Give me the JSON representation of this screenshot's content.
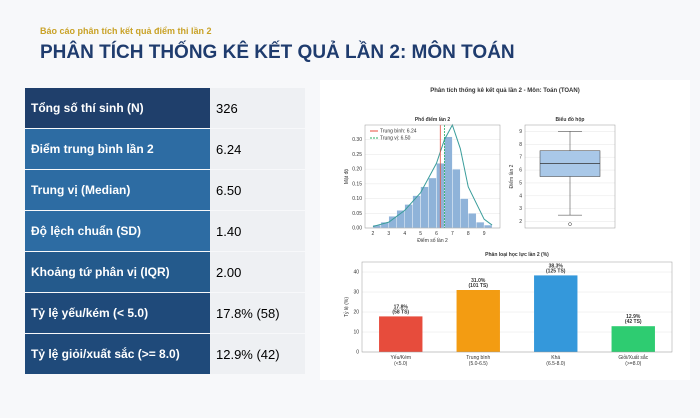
{
  "header": {
    "subtitle": "Báo cáo phân tích kết quả điểm thi lần 2",
    "title": "PHÂN TÍCH THỐNG KÊ KẾT QUẢ LẦN 2: MÔN TOÁN"
  },
  "table": {
    "rows": [
      [
        "Tổng số thí sinh (N)",
        "326"
      ],
      [
        "Điểm trung bình lần 2",
        "6.24"
      ],
      [
        "Trung vị (Median)",
        "6.50"
      ],
      [
        "Độ lệch chuẩn (SD)",
        "1.40"
      ],
      [
        "Khoảng tứ phân vị (IQR)",
        "2.00"
      ],
      [
        "Tỷ lệ yếu/kém (< 5.0)",
        "17.8% (58)"
      ],
      [
        "Tỷ lệ giỏi/xuất sắc (>= 8.0)",
        "12.9% (42)"
      ]
    ]
  },
  "figure": {
    "title": "Phân tích thống kê kết quả lần 2 - Môn: Toán (TOAN)",
    "histogram": {
      "type": "histogram",
      "title": "Phổ điểm lần 2",
      "x_label": "Điểm số lần 2",
      "y_label": "Mật độ",
      "color": "#8fb3d9",
      "bins": [
        2.0,
        2.5,
        3.0,
        3.5,
        4.0,
        4.5,
        5.0,
        5.5,
        6.0,
        6.5,
        7.0,
        7.5,
        8.0,
        8.5,
        9.0,
        9.5
      ],
      "values": [
        0.01,
        0.02,
        0.04,
        0.06,
        0.08,
        0.11,
        0.14,
        0.17,
        0.22,
        0.31,
        0.2,
        0.1,
        0.05,
        0.02,
        0.01
      ],
      "kde": {
        "color": "#3a9d9b",
        "x": [
          2,
          3,
          4,
          5,
          6,
          6.5,
          7,
          7.5,
          8,
          9,
          9.5
        ],
        "values": [
          0.005,
          0.02,
          0.06,
          0.12,
          0.22,
          0.3,
          0.35,
          0.27,
          0.14,
          0.03,
          0.01
        ]
      },
      "mean": 6.24,
      "mean_label": "Trung bình: 6.24",
      "mean_color": "#e74c3c",
      "median": 6.5,
      "median_label": "Trung vị: 6.50",
      "median_color": "#27ae60",
      "xlim": [
        1.5,
        10
      ],
      "xticks": [
        2,
        3,
        4,
        5,
        6,
        7,
        8,
        9
      ],
      "ylim": [
        0,
        0.35
      ],
      "yticks": [
        {
          "value": 0,
          "label": "0.00"
        },
        {
          "value": 0.05,
          "label": "0.05"
        },
        {
          "value": 0.1,
          "label": "0.10"
        },
        {
          "value": 0.15,
          "label": "0.15"
        },
        {
          "value": 0.2,
          "label": "0.20"
        },
        {
          "value": 0.25,
          "label": "0.25"
        },
        {
          "value": 0.3,
          "label": "0.30"
        }
      ]
    },
    "boxplot": {
      "type": "box",
      "title": "Biểu đồ hộp",
      "y_label": "Điểm lần 2",
      "color": "#a9c8e8",
      "min": 2.5,
      "q1": 5.5,
      "median": 6.5,
      "q3": 7.5,
      "max": 9.0,
      "outliers": [
        1.8
      ],
      "ylim": [
        1.5,
        9.5
      ],
      "yticks": [
        2,
        3,
        4,
        5,
        6,
        7,
        8,
        9
      ]
    },
    "bar": {
      "type": "bar",
      "title": "Phân loại học lực lần 2 (%)",
      "y_label": "Tỷ lệ (%)",
      "categories": [
        "Yếu/Kém",
        "Trung bình",
        "Khá",
        "Giỏi/Xuất sắc"
      ],
      "category_ranges": [
        "(<5.0)",
        "(5.0-6.5)",
        "(6.5-8.0)",
        "(>=8.0)"
      ],
      "values": [
        17.8,
        31.0,
        38.3,
        12.9
      ],
      "value_labels": [
        "17.8%",
        "31.0%",
        "38.3%",
        "12.9%"
      ],
      "count_labels": [
        "(58 TS)",
        "(101 TS)",
        "(125 TS)",
        "(42 TS)"
      ],
      "colors": [
        "#e74c3c",
        "#f39c12",
        "#3498db",
        "#2ecc71"
      ],
      "ylim": [
        0,
        45
      ],
      "yticks": [
        0,
        10,
        20,
        30,
        40
      ]
    }
  }
}
